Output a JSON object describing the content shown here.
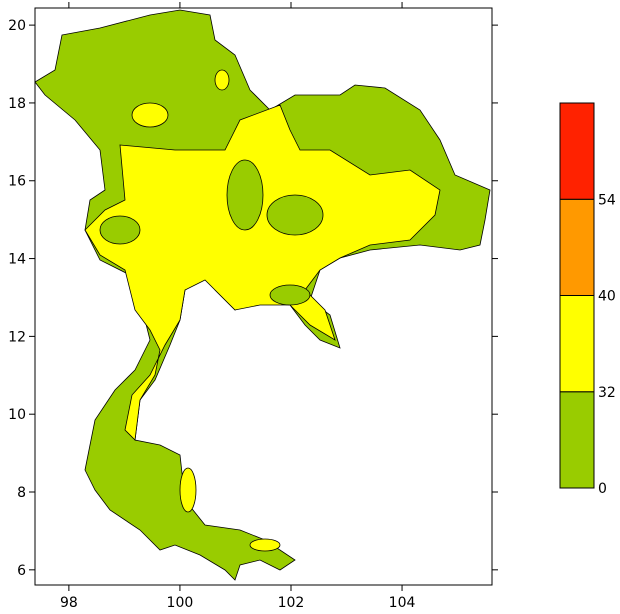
{
  "map": {
    "xlim": [
      97.39,
      105.62
    ],
    "ylim": [
      5.61,
      20.44
    ],
    "xticks": [
      98,
      100,
      102,
      104
    ],
    "yticks": [
      6,
      8,
      10,
      12,
      14,
      16,
      18,
      20
    ]
  },
  "colorbar": {
    "levels": [
      0,
      32,
      40,
      54
    ],
    "colors": [
      "#99cc00",
      "#ffff00",
      "#ff9900",
      "#ff2200"
    ]
  }
}
